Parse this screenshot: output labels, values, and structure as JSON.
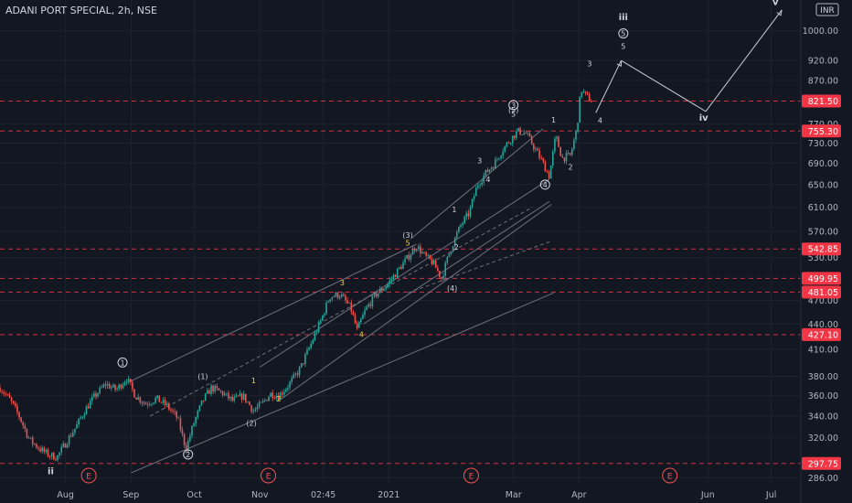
{
  "header": {
    "title": "ADANI PORT SPECIAL, 2h, NSE",
    "currency": "INR"
  },
  "colors": {
    "background": "#131722",
    "up": "#26a69a",
    "down": "#ef5350",
    "level": "#f23645",
    "grid": "#1e222d",
    "axis_text": "#b2b5be",
    "trendline": "#787b86",
    "label_white": "#d1d4dc",
    "label_yellow": "#f5d547"
  },
  "chart_data": {
    "type": "candlestick",
    "symbol": "ADANI PORT SPECIAL",
    "interval": "2h",
    "exchange": "NSE",
    "y_scale": "log",
    "ylim": [
      282,
      1090
    ],
    "xlim": [
      "2020-07-01",
      "2021-07-15"
    ],
    "y_ticks": [
      "1000.00",
      "920.00",
      "870.00",
      "770.00",
      "730.00",
      "690.00",
      "650.00",
      "610.00",
      "570.00",
      "530.00",
      "470.00",
      "440.00",
      "410.00",
      "380.00",
      "360.00",
      "340.00",
      "320.00",
      "286.00"
    ],
    "x_ticks": [
      {
        "label": "Aug",
        "date": "2020-08-01"
      },
      {
        "label": "Sep",
        "date": "2020-09-01"
      },
      {
        "label": "Oct",
        "date": "2020-10-01"
      },
      {
        "label": "Nov",
        "date": "2020-11-01"
      },
      {
        "label": "02:45",
        "date": "2020-12-01"
      },
      {
        "label": "2021",
        "date": "2021-01-01"
      },
      {
        "label": "Mar",
        "date": "2021-03-01"
      },
      {
        "label": "Apr",
        "date": "2021-04-01"
      },
      {
        "label": "Jun",
        "date": "2021-06-01"
      },
      {
        "label": "Jul",
        "date": "2021-07-01"
      }
    ],
    "price_path": [
      [
        "2020-07-01",
        368
      ],
      [
        "2020-07-06",
        355
      ],
      [
        "2020-07-10",
        340
      ],
      [
        "2020-07-15",
        318
      ],
      [
        "2020-07-20",
        310
      ],
      [
        "2020-07-24",
        305
      ],
      [
        "2020-07-28",
        303
      ],
      [
        "2020-08-01",
        315
      ],
      [
        "2020-08-06",
        330
      ],
      [
        "2020-08-10",
        345
      ],
      [
        "2020-08-15",
        360
      ],
      [
        "2020-08-20",
        372
      ],
      [
        "2020-08-25",
        366
      ],
      [
        "2020-08-30",
        378
      ],
      [
        "2020-09-03",
        360
      ],
      [
        "2020-09-08",
        352
      ],
      [
        "2020-09-13",
        357
      ],
      [
        "2020-09-18",
        350
      ],
      [
        "2020-09-23",
        338
      ],
      [
        "2020-09-27",
        310
      ],
      [
        "2020-10-01",
        335
      ],
      [
        "2020-10-05",
        355
      ],
      [
        "2020-10-09",
        368
      ],
      [
        "2020-10-14",
        363
      ],
      [
        "2020-10-19",
        355
      ],
      [
        "2020-10-24",
        360
      ],
      [
        "2020-10-29",
        345
      ],
      [
        "2020-11-02",
        352
      ],
      [
        "2020-11-06",
        362
      ],
      [
        "2020-11-10",
        360
      ],
      [
        "2020-11-15",
        372
      ],
      [
        "2020-11-20",
        388
      ],
      [
        "2020-11-25",
        415
      ],
      [
        "2020-11-30",
        445
      ],
      [
        "2020-12-04",
        475
      ],
      [
        "2020-12-09",
        478
      ],
      [
        "2020-12-14",
        460
      ],
      [
        "2020-12-17",
        432
      ],
      [
        "2020-12-21",
        458
      ],
      [
        "2020-12-26",
        478
      ],
      [
        "2020-12-31",
        490
      ],
      [
        "2021-01-05",
        510
      ],
      [
        "2021-01-10",
        530
      ],
      [
        "2021-01-14",
        548
      ],
      [
        "2021-01-18",
        532
      ],
      [
        "2021-01-22",
        522
      ],
      [
        "2021-01-26",
        500
      ],
      [
        "2021-01-30",
        540
      ],
      [
        "2021-02-04",
        580
      ],
      [
        "2021-02-08",
        600
      ],
      [
        "2021-02-12",
        650
      ],
      [
        "2021-02-16",
        672
      ],
      [
        "2021-02-20",
        690
      ],
      [
        "2021-02-24",
        718
      ],
      [
        "2021-02-28",
        740
      ],
      [
        "2021-03-03",
        755
      ],
      [
        "2021-03-07",
        750
      ],
      [
        "2021-03-11",
        720
      ],
      [
        "2021-03-15",
        690
      ],
      [
        "2021-03-18",
        665
      ],
      [
        "2021-03-21",
        745
      ],
      [
        "2021-03-24",
        700
      ],
      [
        "2021-03-28",
        705
      ],
      [
        "2021-03-31",
        760
      ],
      [
        "2021-04-02",
        850
      ],
      [
        "2021-04-04",
        835
      ],
      [
        "2021-04-07",
        821.5
      ]
    ],
    "levels": [
      "821.50",
      "755.30",
      "542.85",
      "499.95",
      "481.05",
      "427.10",
      "297.75"
    ],
    "current_price": "821.50",
    "wave_labels": [
      {
        "text": "ii",
        "date": "2020-07-25",
        "price": 289,
        "style": "roman"
      },
      {
        "text": "1",
        "date": "2020-08-28",
        "price": 392,
        "style": "circled"
      },
      {
        "text": "2",
        "date": "2020-09-28",
        "price": 303,
        "style": "circled"
      },
      {
        "text": "(1)",
        "date": "2020-10-05",
        "price": 377,
        "style": "white"
      },
      {
        "text": "(2)",
        "date": "2020-10-28",
        "price": 331,
        "style": "white"
      },
      {
        "text": "1",
        "date": "2020-10-29",
        "price": 373,
        "style": "yellow"
      },
      {
        "text": "2",
        "date": "2020-11-10",
        "price": 354,
        "style": "yellow"
      },
      {
        "text": "3",
        "date": "2020-12-10",
        "price": 490,
        "style": "yellow"
      },
      {
        "text": "4",
        "date": "2020-12-19",
        "price": 424,
        "style": "yellow"
      },
      {
        "text": "(3)",
        "date": "2021-01-10",
        "price": 560,
        "style": "white"
      },
      {
        "text": "5",
        "date": "2021-01-10",
        "price": 548,
        "style": "yellow"
      },
      {
        "text": "(4)",
        "date": "2021-01-31",
        "price": 483,
        "style": "white"
      },
      {
        "text": "1",
        "date": "2021-02-01",
        "price": 602,
        "style": "white"
      },
      {
        "text": "2",
        "date": "2021-02-02",
        "price": 542,
        "style": "white"
      },
      {
        "text": "3",
        "date": "2021-02-13",
        "price": 690,
        "style": "white"
      },
      {
        "text": "4",
        "date": "2021-02-17",
        "price": 655,
        "style": "white"
      },
      {
        "text": "(5)",
        "date": "2021-03-01",
        "price": 795,
        "style": "white"
      },
      {
        "text": "3",
        "date": "2021-03-01",
        "price": 806,
        "style": "circled"
      },
      {
        "text": "5",
        "date": "2021-03-01",
        "price": 786,
        "style": "white"
      },
      {
        "text": "1",
        "date": "2021-03-20",
        "price": 773,
        "style": "white"
      },
      {
        "text": "4",
        "date": "2021-03-16",
        "price": 645,
        "style": "circled"
      },
      {
        "text": "2",
        "date": "2021-03-28",
        "price": 678,
        "style": "white"
      },
      {
        "text": "3",
        "date": "2021-04-06",
        "price": 905,
        "style": "white"
      },
      {
        "text": "4",
        "date": "2021-04-11",
        "price": 772,
        "style": "white"
      },
      {
        "text": "iii",
        "date": "2021-04-22",
        "price": 1030,
        "style": "roman"
      },
      {
        "text": "5",
        "date": "2021-04-22",
        "price": 985,
        "style": "circled"
      },
      {
        "text": "5",
        "date": "2021-04-22",
        "price": 950,
        "style": "white"
      },
      {
        "text": "iv",
        "date": "2021-05-30",
        "price": 777,
        "style": "roman"
      },
      {
        "text": "v",
        "date": "2021-07-03",
        "price": 1075,
        "style": "roman"
      }
    ],
    "projection": [
      [
        "2021-04-09",
        795
      ],
      [
        "2021-04-21",
        920
      ],
      [
        "2021-05-31",
        798
      ],
      [
        "2021-07-06",
        1060
      ]
    ],
    "trendlines": [
      {
        "from": [
          "2020-08-31",
          374
        ],
        "to": [
          "2021-01-14",
          550
        ],
        "dashed": false
      },
      {
        "from": [
          "2020-09-10",
          340
        ],
        "to": [
          "2021-03-10",
          610
        ],
        "dashed": true
      },
      {
        "from": [
          "2020-11-01",
          390
        ],
        "to": [
          "2021-03-18",
          660
        ],
        "dashed": false
      },
      {
        "from": [
          "2020-11-10",
          355
        ],
        "to": [
          "2021-03-19",
          615
        ],
        "dashed": false
      },
      {
        "from": [
          "2020-12-20",
          440
        ],
        "to": [
          "2021-03-18",
          620
        ],
        "dashed": false
      },
      {
        "from": [
          "2021-01-10",
          480
        ],
        "to": [
          "2021-03-19",
          555
        ],
        "dashed": true
      },
      {
        "from": [
          "2020-09-01",
          290
        ],
        "to": [
          "2021-03-20",
          480
        ],
        "dashed": false
      },
      {
        "from": [
          "2021-01-12",
          560
        ],
        "to": [
          "2021-03-15",
          760
        ],
        "dashed": false
      }
    ],
    "events": [
      {
        "text": "E",
        "date": "2020-08-12"
      },
      {
        "text": "E",
        "date": "2020-11-05"
      },
      {
        "text": "E",
        "date": "2021-02-09"
      },
      {
        "text": "E",
        "date": "2021-05-14"
      }
    ]
  }
}
